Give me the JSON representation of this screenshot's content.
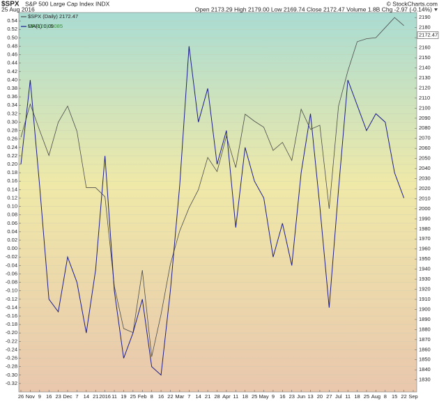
{
  "header": {
    "symbol": "$SPX",
    "name": "S&P 500 Large Cap Index INDX",
    "date": "25 Aug 2016",
    "quote": "Open 2173.29 High 2179.00 Low 2169.74 Close 2172.47 Volume 1.8B Chg -2.97 (-0.14%)",
    "credit": "© StockCharts.com"
  },
  "chart_data": {
    "type": "line",
    "grid": true,
    "categories": [
      "26",
      "Nov",
      "9",
      "16",
      "23",
      "Dec",
      "7",
      "14",
      "21",
      "2016",
      "11",
      "19",
      "25",
      "Feb",
      "8",
      "16",
      "22",
      "Mar",
      "7",
      "14",
      "21",
      "28",
      "Apr",
      "11",
      "18",
      "25",
      "May",
      "9",
      "16",
      "23",
      "Jun",
      "13",
      "20",
      "27",
      "Jul",
      "11",
      "18",
      "25",
      "Aug",
      "8",
      "15",
      "22",
      "Sep"
    ],
    "series": [
      {
        "name": "$SPX (Daily) 2172.47",
        "color": "#4a4a4a",
        "axis": "y2",
        "values": [
          2071,
          2104,
          2078,
          2053,
          2086,
          2102,
          2077,
          2021,
          2021,
          2012,
          1923,
          1881,
          1877,
          1939,
          1853,
          1895,
          1945,
          1978,
          2001,
          2019,
          2051,
          2037,
          2072,
          2041,
          2094,
          2087,
          2081,
          2058,
          2066,
          2048,
          2099,
          2079,
          2083,
          2000,
          2102,
          2137,
          2166,
          2169,
          2170,
          2180,
          2190,
          2182,
          null
        ]
      },
      {
        "name": "MA(1) 0.09",
        "color": "#1c1c8a",
        "values": [
          0.2,
          0.4,
          0.15,
          -0.12,
          -0.15,
          -0.02,
          -0.08,
          -0.2,
          -0.05,
          0.22,
          -0.1,
          -0.26,
          -0.2,
          -0.12,
          -0.28,
          -0.3,
          -0.1,
          0.15,
          0.48,
          0.3,
          0.38,
          0.2,
          0.28,
          0.05,
          0.24,
          0.16,
          0.12,
          -0.02,
          0.06,
          -0.04,
          0.18,
          0.32,
          0.1,
          -0.14,
          0.14,
          0.4,
          0.34,
          0.28,
          0.32,
          0.3,
          0.18,
          0.12,
          null
        ]
      }
    ],
    "legend_note": "CPR(20) 0.085",
    "last_price": 2172.47,
    "ylim": [
      -0.34,
      0.56
    ],
    "yticks": [
      0.54,
      0.52,
      {
        "value": 0.5,
        "label": "0.50"
      },
      0.48,
      0.46,
      0.44,
      0.42,
      {
        "value": 0.4,
        "label": "0.40"
      },
      0.38,
      0.36,
      0.34,
      0.32,
      {
        "value": 0.3,
        "label": "0.30"
      },
      0.28,
      0.26,
      0.24,
      0.22,
      {
        "value": 0.2,
        "label": "0.20"
      },
      0.18,
      0.16,
      0.14,
      0.12,
      {
        "value": 0.1,
        "label": "0.10"
      },
      0.08,
      0.06,
      0.04,
      0.02,
      {
        "value": 0,
        "label": "0.00"
      },
      -0.02,
      -0.04,
      -0.06,
      -0.08,
      {
        "value": -0.1,
        "label": "-0.10"
      },
      -0.12,
      -0.14,
      -0.16,
      -0.18,
      {
        "value": -0.2,
        "label": "-0.20"
      },
      -0.22,
      -0.24,
      -0.26,
      -0.28,
      {
        "value": -0.3,
        "label": "-0.30"
      },
      -0.32
    ],
    "y2lim": [
      1818,
      2195
    ],
    "y2ticks": [
      1830,
      1840,
      1850,
      1860,
      1870,
      1880,
      1890,
      1900,
      1910,
      1920,
      1930,
      1940,
      1950,
      1960,
      1970,
      1980,
      1990,
      2000,
      2010,
      2020,
      2030,
      2040,
      2050,
      2060,
      2070,
      2080,
      2090,
      2100,
      2110,
      2120,
      2130,
      2140,
      2150,
      2160,
      2170,
      2180,
      2190
    ]
  }
}
